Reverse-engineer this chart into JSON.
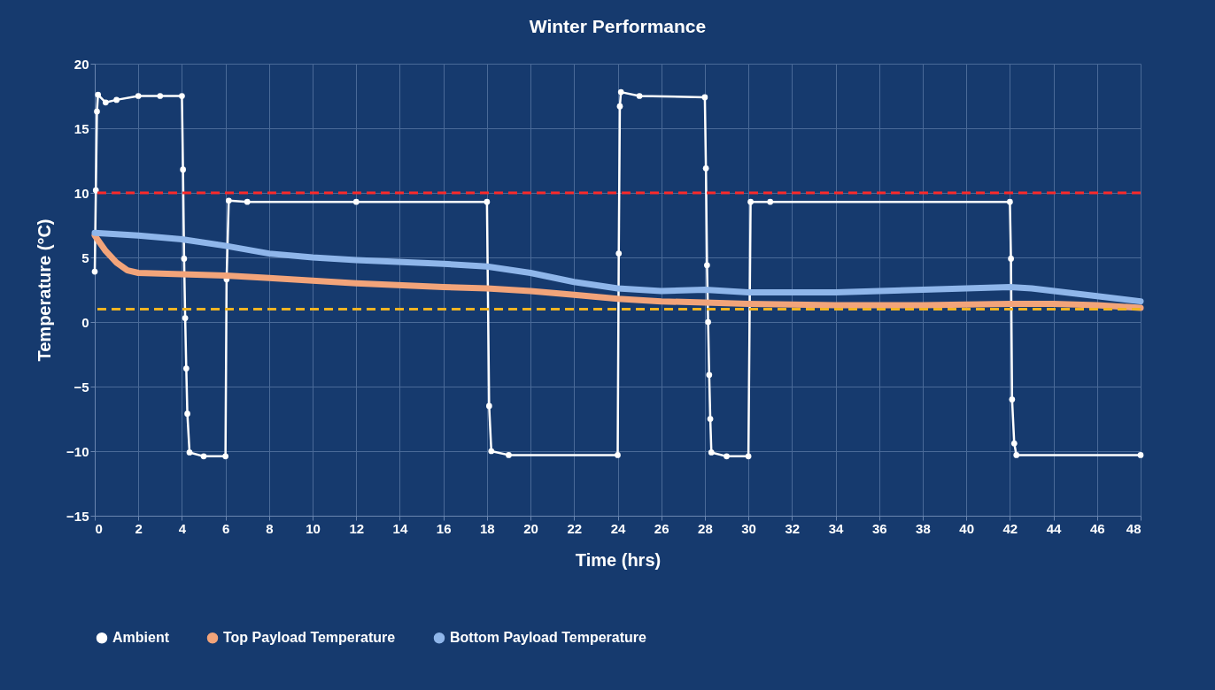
{
  "chart_data": {
    "type": "line",
    "title": "Winter Performance",
    "xlabel": "Time (hrs)",
    "ylabel": "Temperature (°C)",
    "xlim": [
      0,
      48
    ],
    "xticks": [
      0,
      2,
      4,
      6,
      8,
      10,
      12,
      14,
      16,
      18,
      20,
      22,
      24,
      26,
      28,
      30,
      32,
      34,
      36,
      38,
      40,
      42,
      44,
      46,
      48
    ],
    "ylim": [
      -15,
      20
    ],
    "yticks": [
      -15,
      -10,
      -5,
      0,
      5,
      10,
      15,
      20
    ],
    "grid": true,
    "legend": "bottom",
    "ref_lines": [
      {
        "axis": "y",
        "value": 10,
        "color": "#ff2a2a",
        "line_style": "dashed"
      },
      {
        "axis": "y",
        "value": 1,
        "color": "#f0b422",
        "line_style": "dashed"
      }
    ],
    "series": [
      {
        "name": "Ambient",
        "color": "#ffffff",
        "marker": "circle",
        "x": [
          0,
          0.05,
          0.1,
          0.15,
          0.5,
          1,
          2,
          3,
          4,
          4.05,
          4.1,
          4.15,
          4.2,
          4.25,
          4.35,
          5,
          6,
          6.05,
          6.15,
          7,
          12,
          18,
          18.1,
          18.2,
          19,
          24,
          24.05,
          24.1,
          24.15,
          25,
          28,
          28.05,
          28.1,
          28.15,
          28.2,
          28.25,
          28.3,
          29,
          30,
          30.1,
          31,
          42,
          42.05,
          42.1,
          42.2,
          42.3,
          48
        ],
        "values": [
          3.9,
          10.2,
          16.3,
          17.6,
          17.0,
          17.2,
          17.5,
          17.5,
          17.5,
          11.8,
          4.9,
          0.3,
          -3.6,
          -7.1,
          -10.1,
          -10.4,
          -10.4,
          3.3,
          9.4,
          9.3,
          9.3,
          9.3,
          -6.5,
          -10.0,
          -10.3,
          -10.3,
          5.3,
          16.7,
          17.8,
          17.5,
          17.4,
          11.9,
          4.4,
          0,
          -4.1,
          -7.5,
          -10.1,
          -10.4,
          -10.4,
          9.3,
          9.3,
          9.3,
          4.9,
          -6.0,
          -9.4,
          -10.3,
          -10.3
        ]
      },
      {
        "name": "Top Payload Temperature",
        "color": "#f2a47a",
        "x": [
          0,
          0.5,
          1,
          1.5,
          2,
          4,
          6,
          8,
          12,
          16,
          18,
          20,
          22,
          24,
          26,
          28,
          30,
          34,
          38,
          42,
          44,
          46,
          48
        ],
        "values": [
          6.7,
          5.5,
          4.6,
          4.0,
          3.8,
          3.7,
          3.6,
          3.4,
          3.0,
          2.7,
          2.6,
          2.4,
          2.1,
          1.8,
          1.6,
          1.5,
          1.4,
          1.3,
          1.3,
          1.4,
          1.4,
          1.3,
          1.1
        ]
      },
      {
        "name": "Bottom Payload Temperature",
        "color": "#8fb6ea",
        "x": [
          0,
          2,
          4,
          6,
          8,
          10,
          12,
          16,
          18,
          20,
          22,
          24,
          26,
          28,
          30,
          34,
          38,
          42,
          43,
          46,
          48
        ],
        "values": [
          6.9,
          6.7,
          6.4,
          5.9,
          5.3,
          5.0,
          4.8,
          4.5,
          4.3,
          3.8,
          3.1,
          2.6,
          2.4,
          2.5,
          2.3,
          2.3,
          2.5,
          2.7,
          2.6,
          2.0,
          1.6
        ]
      }
    ]
  }
}
